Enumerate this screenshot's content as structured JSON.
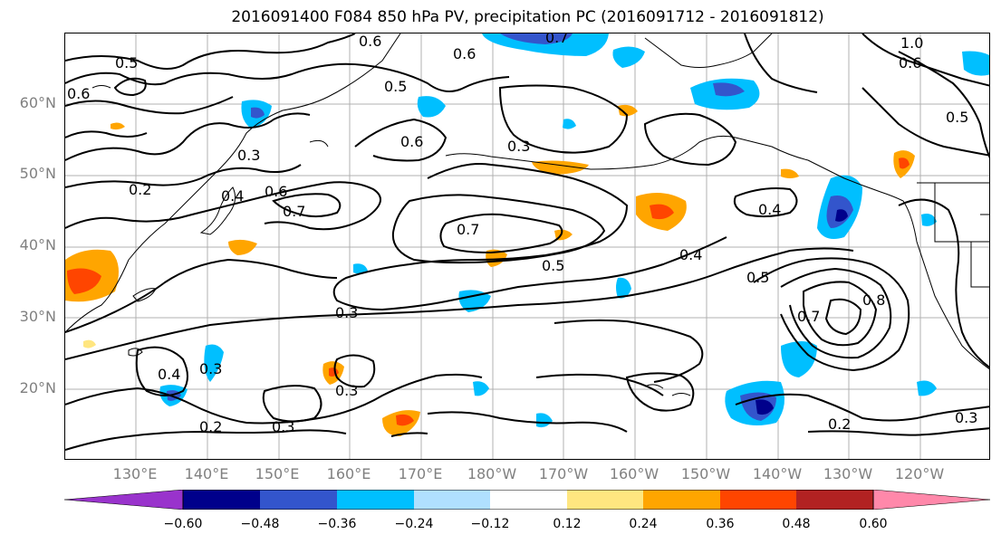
{
  "title": "2016091400 F084 850 hPa PV, precipitation PC (2016091712 - 2016091812)",
  "lat_labels": [
    "60°N",
    "50°N",
    "40°N",
    "30°N",
    "20°N"
  ],
  "lon_labels": [
    "130°E",
    "140°E",
    "150°E",
    "160°E",
    "170°E",
    "180°W",
    "170°W",
    "160°W",
    "150°W",
    "140°W",
    "130°W",
    "120°W"
  ],
  "contour_labels": [
    "0.5",
    "0.6",
    "0.6",
    "0.5",
    "0.7",
    "0.6",
    "1.0",
    "0.6",
    "0.5",
    "0.3",
    "0.2",
    "0.4",
    "0.6",
    "0.7",
    "0.6",
    "0.7",
    "0.5",
    "0.4",
    "0.4",
    "0.5",
    "0.8",
    "0.7",
    "0.3",
    "0.3",
    "0.4",
    "0.3",
    "0.2",
    "0.3",
    "0.2",
    "0.3",
    "0.3"
  ],
  "colorbar": {
    "ticks": [
      "−0.60",
      "−0.48",
      "−0.36",
      "−0.24",
      "−0.12",
      "0.12",
      "0.24",
      "0.36",
      "0.48",
      "0.60"
    ],
    "colors": [
      "#9933cc",
      "#00008b",
      "#3355cc",
      "#00bfff",
      "#b0e0ff",
      "#ffffff",
      "#ffe680",
      "#ffa500",
      "#ff4500",
      "#b22222",
      "#ff88aa"
    ]
  }
}
